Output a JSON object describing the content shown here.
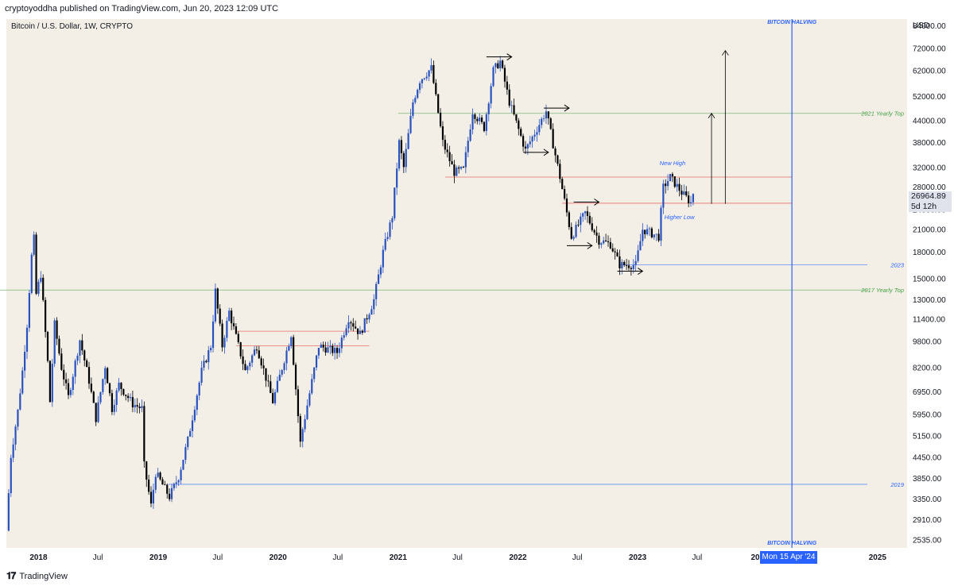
{
  "header": {
    "published": "cryptoyoddha published on TradingView.com, Jun 20, 2023 12:09 UTC"
  },
  "footer": {
    "brand": "TradingView",
    "logo": "tradingview-logo"
  },
  "chart_data": {
    "type": "candlestick",
    "title": "Bitcoin / U.S. Dollar, 1W, CRYPTO",
    "currency": "USD",
    "scale": "log",
    "grid": false,
    "colors": {
      "up": "#2a52be",
      "down": "#000000",
      "background": "#f3efe6",
      "accent": "#2962ff"
    },
    "price_ticks": [
      84000,
      72000,
      62000,
      52000,
      44000,
      38000,
      32000,
      28000,
      24000,
      21000,
      18000,
      15000,
      13000,
      11400,
      9800,
      8200,
      6950,
      5950,
      5150,
      4450,
      3850,
      3350,
      2910,
      2535
    ],
    "price_tick_labels": [
      "84000.00",
      "72000.00",
      "62000.00",
      "52000.00",
      "44000.00",
      "38000.00",
      "32000.00",
      "28000.00",
      "24000.00",
      "21000.00",
      "18000.00",
      "15000.00",
      "13000.00",
      "11400.00",
      "9800.00",
      "8200.00",
      "6950.00",
      "5950.00",
      "5150.00",
      "4450.00",
      "3850.00",
      "3350.00",
      "2910.00",
      "2535.00"
    ],
    "time_ticks": [
      {
        "label": "2018",
        "date": "2018-01-01",
        "bold": true
      },
      {
        "label": "Jul",
        "date": "2018-07-01",
        "bold": false
      },
      {
        "label": "2019",
        "date": "2019-01-01",
        "bold": true
      },
      {
        "label": "Jul",
        "date": "2019-07-01",
        "bold": false
      },
      {
        "label": "2020",
        "date": "2020-01-01",
        "bold": true
      },
      {
        "label": "Jul",
        "date": "2020-07-01",
        "bold": false
      },
      {
        "label": "2021",
        "date": "2021-01-01",
        "bold": true
      },
      {
        "label": "Jul",
        "date": "2021-07-01",
        "bold": false
      },
      {
        "label": "2022",
        "date": "2022-01-01",
        "bold": true
      },
      {
        "label": "Jul",
        "date": "2022-07-01",
        "bold": false
      },
      {
        "label": "2023",
        "date": "2023-01-01",
        "bold": true
      },
      {
        "label": "Jul",
        "date": "2023-07-01",
        "bold": false
      },
      {
        "label": "202",
        "date": "2024-01-01",
        "bold": true
      },
      {
        "label": "2025",
        "date": "2025-01-01",
        "bold": true
      }
    ],
    "last_price": "26964.89",
    "countdown": "5d 12h",
    "current_date_label": "Mon 15 Apr '24",
    "price_path": [
      [
        "2017-09-25",
        2700
      ],
      [
        "2017-10-09",
        4500
      ],
      [
        "2017-10-30",
        6100
      ],
      [
        "2017-11-13",
        8000
      ],
      [
        "2017-11-27",
        11000
      ],
      [
        "2017-12-11",
        17500
      ],
      [
        "2017-12-18",
        19700
      ],
      [
        "2017-12-25",
        13500
      ],
      [
        "2018-01-08",
        15500
      ],
      [
        "2018-01-29",
        8500
      ],
      [
        "2018-02-05",
        6500
      ],
      [
        "2018-02-19",
        11000
      ],
      [
        "2018-03-12",
        8200
      ],
      [
        "2018-04-02",
        6700
      ],
      [
        "2018-05-07",
        9900
      ],
      [
        "2018-06-04",
        7500
      ],
      [
        "2018-06-25",
        5800
      ],
      [
        "2018-07-23",
        8300
      ],
      [
        "2018-08-13",
        6200
      ],
      [
        "2018-09-03",
        7300
      ],
      [
        "2018-10-15",
        6400
      ],
      [
        "2018-11-12",
        6200
      ],
      [
        "2018-11-19",
        4200
      ],
      [
        "2018-12-10",
        3200
      ],
      [
        "2018-12-24",
        4000
      ],
      [
        "2019-02-04",
        3400
      ],
      [
        "2019-03-04",
        3900
      ],
      [
        "2019-04-01",
        5000
      ],
      [
        "2019-05-13",
        8000
      ],
      [
        "2019-06-10",
        9500
      ],
      [
        "2019-06-24",
        13800
      ],
      [
        "2019-07-15",
        9500
      ],
      [
        "2019-08-05",
        12000
      ],
      [
        "2019-09-23",
        8000
      ],
      [
        "2019-10-28",
        9500
      ],
      [
        "2019-12-16",
        6500
      ],
      [
        "2020-02-10",
        10300
      ],
      [
        "2020-03-09",
        4900
      ],
      [
        "2020-03-16",
        5400
      ],
      [
        "2020-05-04",
        9500
      ],
      [
        "2020-06-29",
        9100
      ],
      [
        "2020-08-03",
        11500
      ],
      [
        "2020-09-07",
        10300
      ],
      [
        "2020-10-19",
        13000
      ],
      [
        "2020-11-16",
        18000
      ],
      [
        "2020-12-14",
        23000
      ],
      [
        "2021-01-04",
        38000
      ],
      [
        "2021-01-18",
        32000
      ],
      [
        "2021-02-15",
        50000
      ],
      [
        "2021-03-08",
        58000
      ],
      [
        "2021-04-12",
        63000
      ],
      [
        "2021-05-17",
        38000
      ],
      [
        "2021-06-21",
        31000
      ],
      [
        "2021-07-19",
        31500
      ],
      [
        "2021-08-16",
        47000
      ],
      [
        "2021-09-20",
        42000
      ],
      [
        "2021-10-18",
        62000
      ],
      [
        "2021-11-08",
        66000
      ],
      [
        "2021-12-06",
        50000
      ],
      [
        "2022-01-24",
        36000
      ],
      [
        "2022-03-28",
        47000
      ],
      [
        "2022-05-09",
        30000
      ],
      [
        "2022-06-13",
        20000
      ],
      [
        "2022-07-25",
        23500
      ],
      [
        "2022-09-05",
        19500
      ],
      [
        "2022-10-10",
        19000
      ],
      [
        "2022-11-07",
        16500
      ],
      [
        "2022-12-26",
        16500
      ],
      [
        "2023-01-16",
        21000
      ],
      [
        "2023-03-06",
        20000
      ],
      [
        "2023-03-20",
        28000
      ],
      [
        "2023-04-10",
        30000
      ],
      [
        "2023-05-15",
        27000
      ],
      [
        "2023-06-12",
        25200
      ],
      [
        "2023-06-19",
        26964.89
      ]
    ],
    "horizontal_lines": [
      {
        "label": "2021 Yearly Top",
        "price": 46300,
        "from": "2021-01-01",
        "to": "2024-12-01",
        "color": "#43a047"
      },
      {
        "label": "2017 Yearly Top",
        "price": 13900,
        "from": "2017-09-01",
        "to": "2024-12-01",
        "color": "#43a047"
      },
      {
        "label": "2023",
        "price": 16500,
        "from": "2022-11-07",
        "to": "2024-12-01",
        "color": "#2962ff"
      },
      {
        "label": "2019",
        "price": 3700,
        "from": "2019-02-01",
        "to": "2024-12-01",
        "color": "#2962ff"
      },
      {
        "label": "",
        "price": 30000,
        "from": "2021-05-24",
        "to": "2024-04-15",
        "color": "#e53935"
      },
      {
        "label": "",
        "price": 25100,
        "from": "2022-05-16",
        "to": "2024-04-15",
        "color": "#e53935"
      },
      {
        "label": "",
        "price": 10500,
        "from": "2019-08-26",
        "to": "2020-10-05",
        "color": "#e53935"
      },
      {
        "label": "",
        "price": 9500,
        "from": "2019-08-26",
        "to": "2020-10-05",
        "color": "#e53935"
      }
    ],
    "vertical_line": {
      "date": "2024-04-15",
      "label": "BITCOIN HALVING",
      "color": "#2962ff"
    },
    "annotations": [
      {
        "text": "New High",
        "date": "2023-04-17",
        "price": 32500,
        "color": "#2962ff"
      },
      {
        "text": "Higher Low",
        "date": "2023-05-08",
        "price": 22500,
        "color": "#2962ff"
      }
    ],
    "horizontal_arrows": [
      {
        "from": "2021-09-27",
        "to": "2021-12-13",
        "price": 68000
      },
      {
        "from": "2022-03-21",
        "to": "2022-06-06",
        "price": 48000
      },
      {
        "from": "2022-01-17",
        "to": "2022-04-04",
        "price": 35500
      },
      {
        "from": "2022-06-20",
        "to": "2022-09-05",
        "price": 25300
      },
      {
        "from": "2022-05-30",
        "to": "2022-08-15",
        "price": 18800
      },
      {
        "from": "2022-10-31",
        "to": "2023-01-16",
        "price": 15800
      }
    ],
    "vertical_arrows": [
      {
        "date": "2023-08-14",
        "from": 25000,
        "to": 46300
      },
      {
        "date": "2023-09-25",
        "from": 25000,
        "to": 71000
      }
    ]
  }
}
